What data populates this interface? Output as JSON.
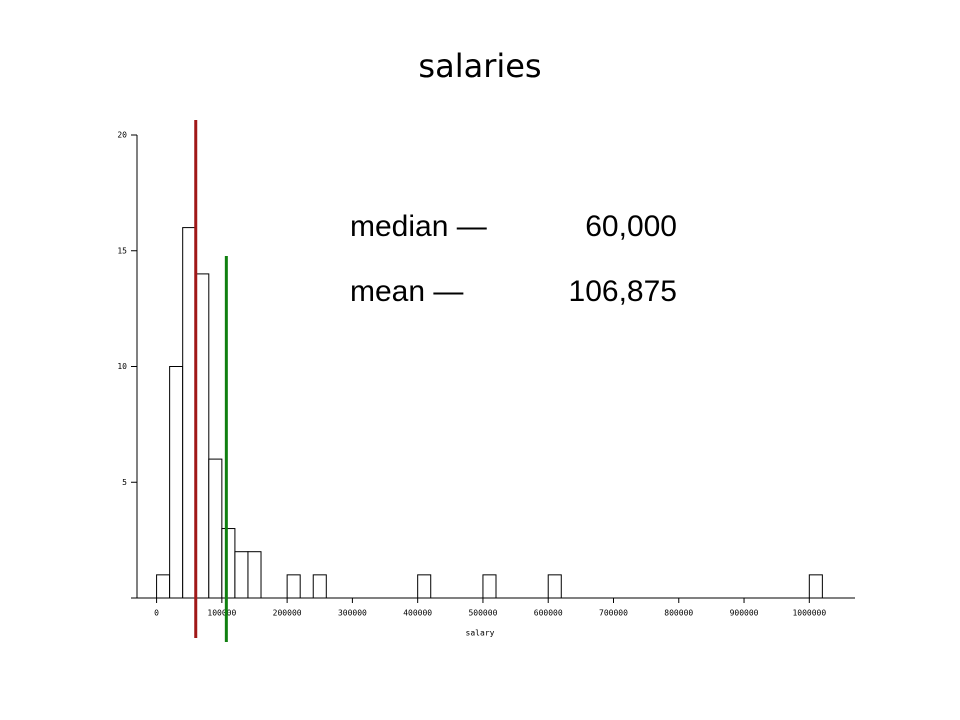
{
  "chart_data": {
    "type": "histogram",
    "title": "salaries",
    "x_label": "salary",
    "bins": [
      0,
      20000,
      40000,
      60000,
      80000,
      100000,
      120000,
      140000,
      160000,
      180000,
      200000,
      220000,
      240000,
      260000,
      280000,
      300000,
      320000,
      340000,
      360000,
      380000,
      400000,
      420000,
      440000,
      460000,
      480000,
      500000,
      520000,
      540000,
      560000,
      580000,
      600000,
      620000,
      640000,
      660000,
      680000,
      700000,
      720000,
      740000,
      760000,
      780000,
      800000,
      820000,
      840000,
      860000,
      880000,
      900000,
      920000,
      940000,
      960000,
      980000,
      1000000,
      1020000
    ],
    "values": [
      1,
      10,
      16,
      14,
      6,
      3,
      2,
      2,
      0,
      0,
      1,
      0,
      1,
      0,
      0,
      0,
      0,
      0,
      0,
      0,
      1,
      0,
      0,
      0,
      0,
      1,
      0,
      0,
      0,
      0,
      1,
      0,
      0,
      0,
      0,
      0,
      0,
      0,
      0,
      0,
      0,
      0,
      0,
      0,
      0,
      0,
      0,
      0,
      0,
      0,
      1
    ],
    "xlim": [
      -30000,
      1070000
    ],
    "ylim": [
      0,
      20
    ],
    "xticks": [
      0,
      100000,
      200000,
      300000,
      400000,
      500000,
      600000,
      700000,
      800000,
      900000,
      1000000
    ],
    "yticks": [
      5,
      10,
      15,
      20
    ],
    "annotations": [
      {
        "label": "median —",
        "value": 60000,
        "value_label": "60,000",
        "color": "#a01818"
      },
      {
        "label": "mean —",
        "value": 106875,
        "value_label": "106,875",
        "color": "#108010"
      }
    ]
  }
}
